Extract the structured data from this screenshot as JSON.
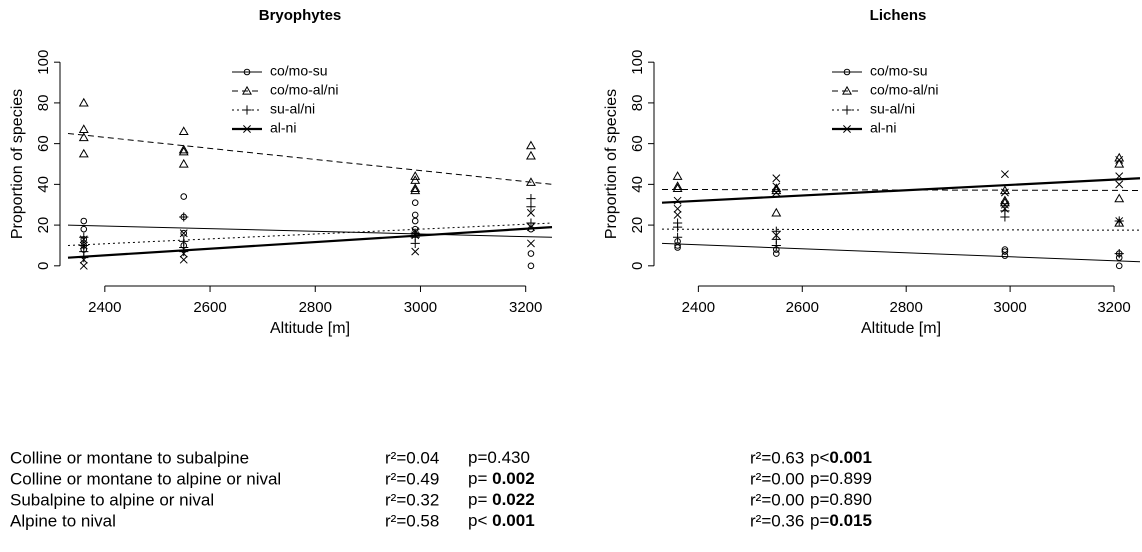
{
  "chart_data": [
    {
      "type": "scatter",
      "title": "Bryophytes",
      "xlabel": "Altitude [m]",
      "ylabel": "Proportion of species",
      "xlim": [
        2330,
        3250
      ],
      "ylim": [
        -5,
        105
      ],
      "xticks": [
        2400,
        2600,
        2800,
        3000,
        3200
      ],
      "yticks": [
        0,
        20,
        40,
        60,
        80,
        100
      ],
      "legend": "top-center",
      "series": [
        {
          "name": "co/mo-su",
          "marker": "circle",
          "line": "solid",
          "linewidth": 1,
          "color": "#000000",
          "x": [
            2360,
            2360,
            2360,
            2360,
            2360,
            2550,
            2550,
            2550,
            2550,
            2990,
            2990,
            2990,
            2990,
            3210,
            3210,
            3210
          ],
          "y": [
            22,
            18,
            13,
            10,
            8,
            34,
            24,
            16,
            10,
            31,
            25,
            22,
            18,
            18,
            6,
            0
          ],
          "fit": [
            20,
            14
          ]
        },
        {
          "name": "co/mo-al/ni",
          "marker": "triangle",
          "line": "dashed",
          "linewidth": 1,
          "color": "#000000",
          "x": [
            2360,
            2360,
            2360,
            2360,
            2550,
            2550,
            2550,
            2550,
            2990,
            2990,
            2990,
            2990,
            3210,
            3210,
            3210
          ],
          "y": [
            80,
            67,
            63,
            55,
            66,
            57,
            56,
            50,
            44,
            42,
            38,
            37,
            59,
            54,
            41
          ],
          "fit": [
            65,
            40
          ]
        },
        {
          "name": "su-al/ni",
          "marker": "plus",
          "line": "dotted",
          "linewidth": 1,
          "color": "#000000",
          "x": [
            2360,
            2360,
            2360,
            2360,
            2550,
            2550,
            2550,
            2550,
            2990,
            2990,
            2990,
            3210,
            3210,
            3210
          ],
          "y": [
            14,
            10,
            7,
            4,
            24,
            12,
            9,
            7,
            16,
            14,
            11,
            33,
            29,
            21
          ],
          "fit": [
            10,
            21
          ]
        },
        {
          "name": "al-ni",
          "marker": "cross",
          "line": "solid",
          "linewidth": 2.2,
          "color": "#000000",
          "x": [
            2360,
            2360,
            2360,
            2360,
            2550,
            2550,
            2550,
            2990,
            2990,
            2990,
            3210,
            3210,
            3210
          ],
          "y": [
            13,
            10,
            3,
            0,
            16,
            6,
            3,
            17,
            15,
            7,
            26,
            19,
            11
          ],
          "fit": [
            4,
            19
          ]
        }
      ]
    },
    {
      "type": "scatter",
      "title": "Lichens",
      "xlabel": "Altitude [m]",
      "ylabel": "Proportion of species",
      "xlim": [
        2330,
        3250
      ],
      "ylim": [
        -5,
        105
      ],
      "xticks": [
        2400,
        2600,
        2800,
        3000,
        3200
      ],
      "yticks": [
        0,
        20,
        40,
        60,
        80,
        100
      ],
      "legend": "top-center",
      "series": [
        {
          "name": "co/mo-su",
          "marker": "circle",
          "line": "solid",
          "linewidth": 1,
          "color": "#000000",
          "x": [
            2360,
            2360,
            2360,
            2550,
            2550,
            2990,
            2990,
            2990,
            3210,
            3210,
            3210
          ],
          "y": [
            12,
            10,
            9,
            8,
            6,
            8,
            7,
            5,
            6,
            4,
            0
          ],
          "fit": [
            11,
            2
          ]
        },
        {
          "name": "co/mo-al/ni",
          "marker": "triangle",
          "line": "dashed",
          "linewidth": 1,
          "color": "#000000",
          "x": [
            2360,
            2360,
            2360,
            2550,
            2550,
            2550,
            2990,
            2990,
            2990,
            3210,
            3210,
            3210,
            3210
          ],
          "y": [
            44,
            39,
            38,
            38,
            37,
            26,
            37,
            32,
            31,
            53,
            50,
            33,
            21
          ],
          "fit": [
            37.5,
            37
          ]
        },
        {
          "name": "su-al/ni",
          "marker": "plus",
          "line": "dotted",
          "linewidth": 1,
          "color": "#000000",
          "x": [
            2360,
            2360,
            2360,
            2550,
            2550,
            2550,
            2990,
            2990,
            3210,
            3210
          ],
          "y": [
            21,
            19,
            14,
            17,
            13,
            10,
            27,
            24,
            22,
            6
          ],
          "fit": [
            18,
            17.5
          ]
        },
        {
          "name": "al-ni",
          "marker": "cross",
          "line": "solid",
          "linewidth": 2.2,
          "color": "#000000",
          "x": [
            2360,
            2360,
            2360,
            2550,
            2550,
            2550,
            2550,
            2990,
            2990,
            2990,
            2990,
            3210,
            3210,
            3210,
            3210
          ],
          "y": [
            32,
            28,
            25,
            43,
            39,
            36,
            15,
            45,
            36,
            30,
            28,
            52,
            44,
            40,
            22
          ],
          "fit": [
            31,
            43
          ]
        }
      ]
    }
  ],
  "stats": {
    "rows": [
      {
        "label": "Colline or montane to subalpine",
        "cells": [
          {
            "r2": "r²=0.04",
            "p_op": "p=",
            "p": "0.430",
            "bold": false
          },
          {
            "r2": "r²=0.63",
            "p_op": "p<",
            "p": "0.001",
            "bold": true
          }
        ]
      },
      {
        "label": "Colline or montane to alpine or nival",
        "cells": [
          {
            "r2": "r²=0.49",
            "p_op": "p= ",
            "p": "0.002",
            "bold": true
          },
          {
            "r2": "r²=0.00",
            "p_op": "p=",
            "p": "0.899",
            "bold": false
          }
        ]
      },
      {
        "label": "Subalpine to alpine or nival",
        "cells": [
          {
            "r2": "r²=0.32",
            "p_op": "p= ",
            "p": "0.022",
            "bold": true
          },
          {
            "r2": "r²=0.00",
            "p_op": "p=",
            "p": "0.890",
            "bold": false
          }
        ]
      },
      {
        "label": "Alpine to nival",
        "cells": [
          {
            "r2": "r²=0.58",
            "p_op": "p< ",
            "p": "0.001",
            "bold": true
          },
          {
            "r2": "r²=0.36",
            "p_op": "p=",
            "p": "0.015",
            "bold": true
          }
        ]
      }
    ]
  }
}
